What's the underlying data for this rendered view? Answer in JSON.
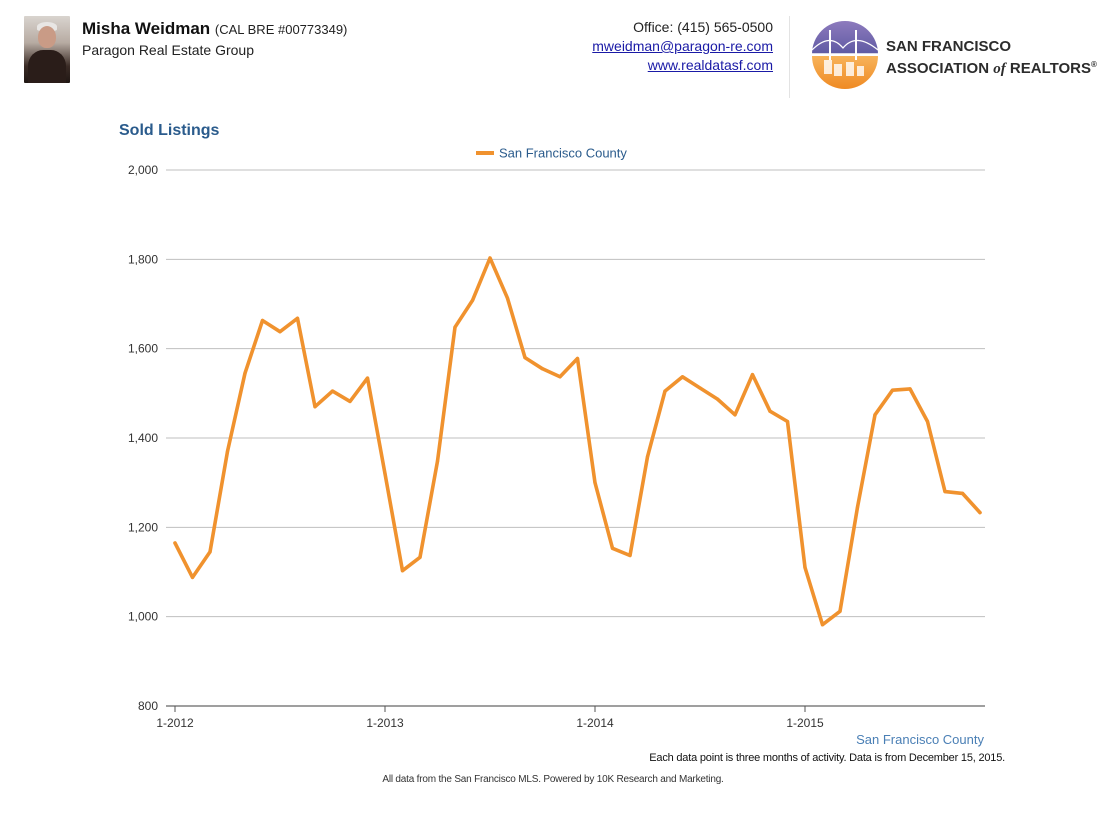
{
  "agent": {
    "name": "Misha Weidman",
    "license": "(CAL BRE #00773349)",
    "company": "Paragon Real Estate Group"
  },
  "contact": {
    "office": "Office: (415) 565-0500",
    "email": "mweidman@paragon-re.com",
    "website": "www.realdatasf.com"
  },
  "logo": {
    "line1": "SAN FRANCISCO",
    "line2_a": "ASSOCIATION ",
    "line2_of": "of",
    "line2_b": " REALTORS",
    "reg": "®",
    "icon": "golden-gate-bridge-logo"
  },
  "chart_data": {
    "type": "line",
    "title": "Sold Listings",
    "xlabel": "",
    "ylabel": "",
    "ylim": [
      800,
      2000
    ],
    "yticks": [
      800,
      1000,
      1200,
      1400,
      1600,
      1800,
      2000
    ],
    "yticklabels": [
      "800",
      "1,000",
      "1,200",
      "1,400",
      "1,600",
      "1,800",
      "2,000"
    ],
    "xticklabels": [
      "1-2012",
      "1-2013",
      "1-2014",
      "1-2015"
    ],
    "grid": true,
    "legend": "top-center",
    "series": [
      {
        "name": "San Francisco County",
        "color": "#f0922e",
        "start": "2012-01",
        "values": [
          1165,
          1088,
          1145,
          1370,
          1545,
          1663,
          1638,
          1668,
          1470,
          1505,
          1482,
          1534,
          1320,
          1103,
          1133,
          1348,
          1648,
          1708,
          1803,
          1713,
          1580,
          1555,
          1537,
          1578,
          1300,
          1153,
          1137,
          1358,
          1505,
          1537,
          1512,
          1487,
          1452,
          1542,
          1460,
          1437,
          1110,
          982,
          1012,
          1245,
          1452,
          1507,
          1510,
          1437,
          1280,
          1276,
          1233
        ]
      }
    ]
  },
  "footer": {
    "county_label": "San Francisco County",
    "note": "Each data point is three months of activity. Data is from December 15, 2015.",
    "source": "All data from the San Francisco MLS. Powered by 10K Research and Marketing."
  }
}
